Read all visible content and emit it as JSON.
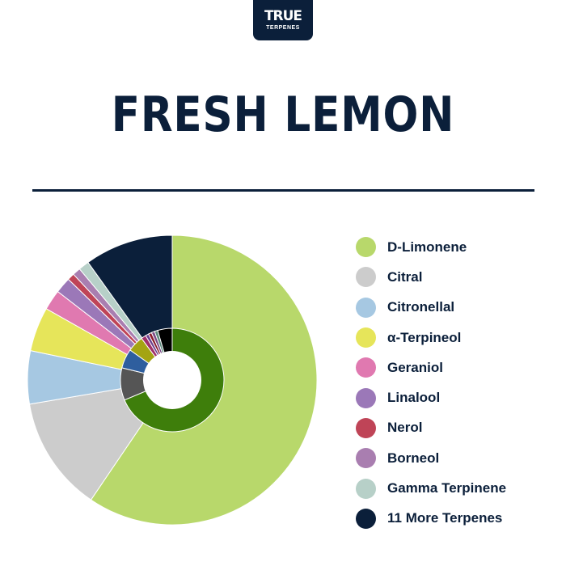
{
  "brand": {
    "line1": "TRUE",
    "line2": "TERPENES"
  },
  "header": {
    "title": "FRESH LEMON"
  },
  "chart_data": {
    "type": "pie",
    "title": "FRESH LEMON",
    "legend_position": "right",
    "outer_ring": [
      {
        "label": "D-Limonene",
        "value": 60.2,
        "color": "#b8d86b"
      },
      {
        "label": "Citral",
        "value": 13.0,
        "color": "#cccccc"
      },
      {
        "label": "Citronellal",
        "value": 6.0,
        "color": "#a6c8e2"
      },
      {
        "label": "α-Terpineol",
        "value": 5.0,
        "color": "#e6e55a"
      },
      {
        "label": "Geraniol",
        "value": 2.3,
        "color": "#e079b0"
      },
      {
        "label": "Linalool",
        "value": 1.8,
        "color": "#9b78b8"
      },
      {
        "label": "Nerol",
        "value": 0.8,
        "color": "#bf4457"
      },
      {
        "label": "Borneol",
        "value": 0.9,
        "color": "#a97eb0"
      },
      {
        "label": "Gamma Terpinene",
        "value": 1.2,
        "color": "#b7d0c8"
      },
      {
        "label": "11 More Terpenes",
        "value": 10.0,
        "color": "#0b1f3a"
      }
    ],
    "inner_ring": [
      {
        "value": 68,
        "color": "#3e7e0b"
      },
      {
        "value": 10,
        "color": "#555555"
      },
      {
        "value": 6,
        "color": "#2e5e9e"
      },
      {
        "value": 5,
        "color": "#a4a413"
      },
      {
        "value": 1.5,
        "color": "#a0306a"
      },
      {
        "value": 1.0,
        "color": "#6b3f8e"
      },
      {
        "value": 1.0,
        "color": "#8a1b2d"
      },
      {
        "value": 1.0,
        "color": "#7a4a86"
      },
      {
        "value": 1.0,
        "color": "#5f8a7e"
      },
      {
        "value": 4.5,
        "color": "#000000"
      }
    ]
  },
  "legend": {
    "items": [
      {
        "label": "D-Limonene",
        "color": "#b8d86b"
      },
      {
        "label": "Citral",
        "color": "#cccccc"
      },
      {
        "label": "Citronellal",
        "color": "#a6c8e2"
      },
      {
        "label": "α-Terpineol",
        "color": "#e6e55a"
      },
      {
        "label": "Geraniol",
        "color": "#e079b0"
      },
      {
        "label": "Linalool",
        "color": "#9b78b8"
      },
      {
        "label": "Nerol",
        "color": "#bf4457"
      },
      {
        "label": "Borneol",
        "color": "#a97eb0"
      },
      {
        "label": "Gamma Terpinene",
        "color": "#b7d0c8"
      },
      {
        "label": "11 More Terpenes",
        "color": "#0b1f3a"
      }
    ]
  }
}
